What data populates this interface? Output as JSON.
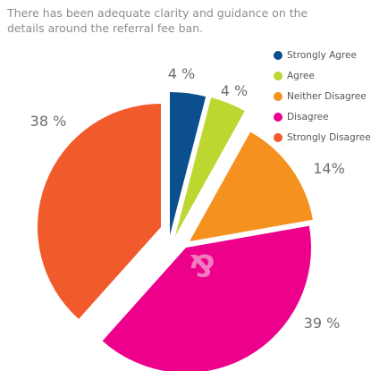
{
  "chart_data": {
    "type": "pie",
    "title": [
      "There has been adequate clarity and guidance on the",
      "details around the referral fee ban."
    ],
    "categories": [
      "Strongly Agree",
      "Agree",
      "Neither Disagree",
      "Disagree",
      "Strongly Disagree"
    ],
    "values": [
      4,
      4,
      14,
      39,
      38
    ],
    "data_labels": [
      "4 %",
      "4 %",
      "14%",
      "39 %",
      "38 %"
    ],
    "colors": [
      "#0b4f8f",
      "#bdd630",
      "#f5911e",
      "#ec008c",
      "#f15a2b"
    ],
    "legend_position": "top-right",
    "exploded": true,
    "center_mark": "&",
    "center_mark_color": "#f27bc0"
  }
}
